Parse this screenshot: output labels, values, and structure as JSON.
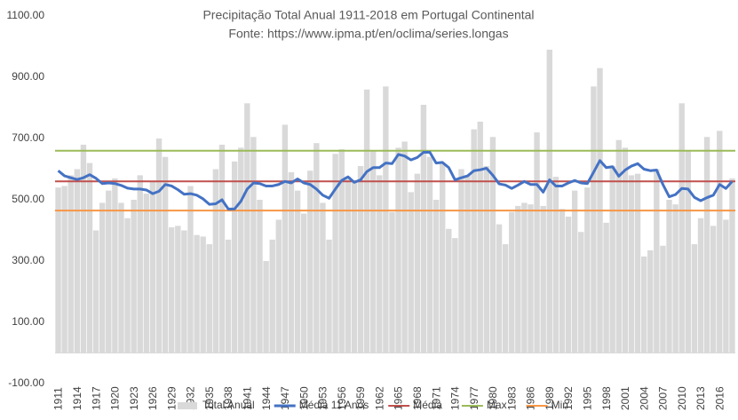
{
  "chart_data": {
    "type": "bar-line",
    "title": "Precipitação Total Anual 1911-2018 em Portugal Continental",
    "subtitle": "Fonte: https://www.ipma.pt/en/oclima/series.longas",
    "categories": [
      "1911",
      null,
      null,
      "1914",
      null,
      null,
      "1917",
      null,
      null,
      "1920",
      null,
      null,
      "1923",
      null,
      null,
      "1926",
      null,
      null,
      "1929",
      null,
      null,
      "1932",
      null,
      null,
      "1935",
      null,
      null,
      "1938",
      null,
      null,
      "1941",
      null,
      null,
      "1944",
      null,
      null,
      "1947",
      null,
      null,
      "1950",
      null,
      null,
      "1953",
      null,
      null,
      "1956",
      null,
      null,
      "1959",
      null,
      null,
      "1962",
      null,
      null,
      "1965",
      null,
      null,
      "1968",
      null,
      null,
      "1971",
      null,
      null,
      "1974",
      null,
      null,
      "1977",
      null,
      null,
      "1980",
      null,
      null,
      "1983",
      null,
      null,
      "1986",
      null,
      null,
      "1989",
      null,
      null,
      "1992",
      null,
      null,
      "1995",
      null,
      null,
      "1998",
      null,
      null,
      "2001",
      null,
      null,
      "2004",
      null,
      null,
      "2007",
      null,
      null,
      "2010",
      null,
      null,
      "2013",
      null,
      null,
      "2016",
      null,
      null
    ],
    "series": [
      {
        "name": "Total Anual",
        "type": "bar",
        "color": "#d9d9d9",
        "values": [
          540,
          545,
          580,
          600,
          680,
          620,
          400,
          490,
          530,
          570,
          490,
          440,
          500,
          580,
          520,
          560,
          700,
          640,
          410,
          415,
          400,
          545,
          385,
          380,
          355,
          600,
          680,
          370,
          625,
          670,
          815,
          705,
          500,
          300,
          370,
          435,
          745,
          590,
          530,
          455,
          595,
          685,
          490,
          370,
          650,
          665,
          575,
          560,
          610,
          860,
          660,
          580,
          870,
          460,
          670,
          690,
          525,
          585,
          810,
          640,
          500,
          620,
          405,
          375,
          600,
          580,
          730,
          755,
          610,
          705,
          420,
          355,
          460,
          480,
          490,
          485,
          720,
          480,
          990,
          575,
          470,
          445,
          530,
          395,
          540,
          870,
          930,
          425,
          610,
          695,
          670,
          580,
          585,
          315,
          335,
          600,
          350,
          500,
          485,
          815,
          660,
          355,
          440,
          705,
          415,
          725,
          435,
          570
        ]
      },
      {
        "name": "Média 11 Anos",
        "type": "line",
        "color": "#4472c4",
        "values": [
          595,
          578,
          572,
          566,
          572,
          582,
          570,
          553,
          555,
          553,
          547,
          538,
          535,
          535,
          532,
          520,
          528,
          550,
          545,
          533,
          518,
          520,
          515,
          503,
          485,
          487,
          500,
          470,
          470,
          495,
          535,
          555,
          553,
          545,
          545,
          550,
          560,
          555,
          568,
          555,
          550,
          535,
          515,
          505,
          535,
          563,
          575,
          557,
          565,
          592,
          605,
          605,
          620,
          618,
          648,
          643,
          630,
          638,
          655,
          655,
          620,
          622,
          605,
          565,
          572,
          578,
          595,
          598,
          603,
          580,
          552,
          548,
          537,
          548,
          560,
          550,
          550,
          525,
          565,
          545,
          545,
          555,
          563,
          555,
          553,
          590,
          628,
          605,
          608,
          577,
          597,
          610,
          618,
          600,
          595,
          597,
          550,
          510,
          517,
          537,
          535,
          508,
          497,
          507,
          515,
          550,
          537,
          560
        ]
      },
      {
        "name": "Média",
        "type": "hline",
        "color": "#c0504d",
        "value": 560
      },
      {
        "name": "Max",
        "type": "hline",
        "color": "#9bbb59",
        "value": 660
      },
      {
        "name": "Min",
        "type": "hline",
        "color": "#f79646",
        "value": 465
      }
    ],
    "ylim": [
      -100,
      1100
    ],
    "yticks": [
      {
        "value": -100,
        "label": "-100.00"
      },
      {
        "value": 100,
        "label": "100.00"
      },
      {
        "value": 300,
        "label": "300.00"
      },
      {
        "value": 500,
        "label": "500.00"
      },
      {
        "value": 700,
        "label": "700.00"
      },
      {
        "value": 900,
        "label": "900.00"
      },
      {
        "value": 1100,
        "label": "1100.00"
      }
    ],
    "grid": false,
    "legend": "bottom"
  }
}
